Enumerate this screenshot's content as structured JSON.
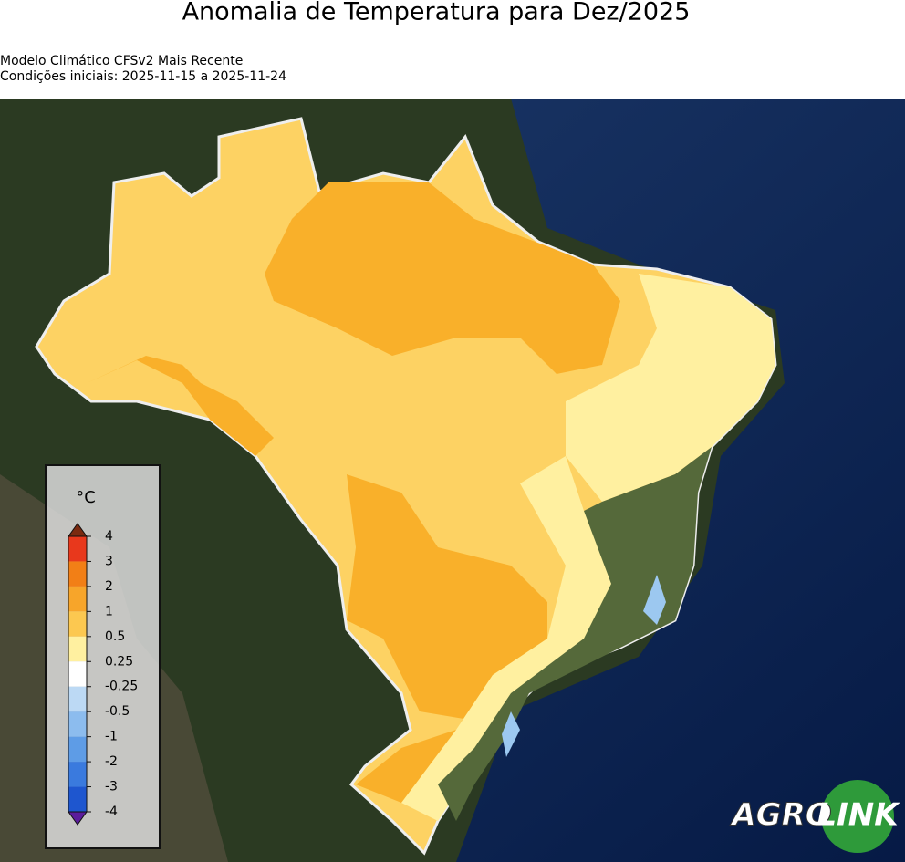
{
  "header": {
    "title": "Anomalia de Temperatura para Dez/2025",
    "subtitle_lines": [
      "Modelo Climático CFSv2 Mais Recente",
      "Condições iniciais: 2025-11-15 a 2025-11-24"
    ]
  },
  "legend": {
    "unit": "°C",
    "ticks": [
      4,
      3,
      2,
      1,
      0.5,
      0.25,
      -0.25,
      -0.5,
      -1,
      -2,
      -3,
      -4
    ],
    "colors": [
      "#e8381c",
      "#f27f16",
      "#f7a52a",
      "#fcc850",
      "#fff0a0",
      "#ffffff",
      "#bcd9f4",
      "#8cbcee",
      "#5e9ce6",
      "#3a7ade",
      "#1e56cf"
    ],
    "extend_colors": [
      "#7a2a10",
      "#5b1c9c"
    ]
  },
  "logo": {
    "parts": [
      "AGRO",
      "LINK"
    ]
  }
}
